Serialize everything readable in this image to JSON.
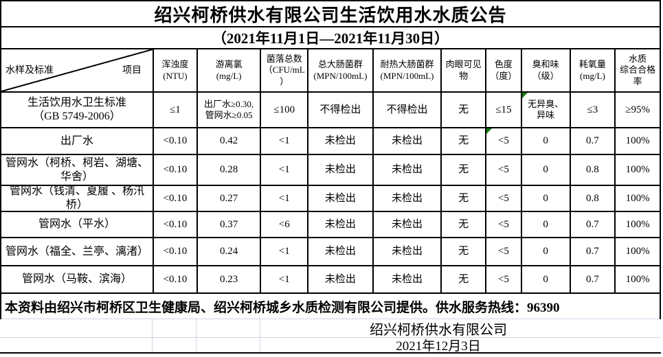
{
  "title": "绍兴柯桥供水有限公司生活饮用水水质公告",
  "subtitle": "（2021年11月1日—2021年11月30日）",
  "corner": {
    "bottom_left": "水样及标准",
    "top_right": "项目"
  },
  "columns": [
    "浑浊度\n(NTU)",
    "游离氯\n(mg/L)",
    "菌落总数\n（CFU/mL\n）",
    "总大肠菌群\n(MPN/100mL)",
    "耐热大肠菌群\n(MPN/100mL)",
    "肉眼可见\n物",
    "色度\n（度）",
    "臭和味\n（级）",
    "耗氧量\n(mg/L)",
    "水质\n综合合格\n率"
  ],
  "rows": [
    {
      "label": "生活饮用水卫生标准\n（GB 5749-2006）",
      "values": [
        "≤1",
        "出厂水≥0.30,\n管网水≥0.05",
        "≤100",
        "不得检出",
        "不得检出",
        "无",
        "≤15",
        "无异臭、\n异味",
        "≤3",
        "≥95%"
      ],
      "error_marker_col": 7
    },
    {
      "label": "出厂水",
      "values": [
        "<0.10",
        "0.42",
        "<1",
        "未检出",
        "未检出",
        "无",
        "<5",
        "0",
        "0.7",
        "100%"
      ],
      "error_marker_col": 6
    },
    {
      "label": "管网水（柯桥、柯岩、湖塘、华舍）",
      "values": [
        "<0.10",
        "0.28",
        "<1",
        "未检出",
        "未检出",
        "无",
        "<5",
        "0",
        "0.8",
        "100%"
      ]
    },
    {
      "label": "管网水（钱清、夏履 、杨汛桥）",
      "values": [
        "<0.10",
        "0.27",
        "<1",
        "未检出",
        "未检出",
        "无",
        "<5",
        "0",
        "0.8",
        "100%"
      ]
    },
    {
      "label": "管网水（平水）",
      "values": [
        "<0.10",
        "0.37",
        "<6",
        "未检出",
        "未检出",
        "无",
        "<5",
        "0",
        "0.7",
        "100%"
      ]
    },
    {
      "label": "管网水（福全、兰亭、漓渚）",
      "values": [
        "<0.10",
        "0.24",
        "<1",
        "未检出",
        "未检出",
        "无",
        "<5",
        "0",
        "0.7",
        "100%"
      ]
    },
    {
      "label": "管网水（马鞍、滨海）",
      "values": [
        "<0.10",
        "0.23",
        "<1",
        "未检出",
        "未检出",
        "无",
        "<5",
        "0",
        "0.7",
        "100%"
      ]
    }
  ],
  "footer": "本资料由绍兴市柯桥区卫生健康局、绍兴柯桥城乡水质检测有限公司提供。供水服务热线：96390",
  "signature": {
    "company": "绍兴柯桥供水有限公司",
    "date": "2021年12月3日"
  },
  "colors": {
    "border": "#000000",
    "gridline": "#ccd6e2",
    "error_marker": "#107c10",
    "text": "#000000",
    "background": "#ffffff"
  }
}
